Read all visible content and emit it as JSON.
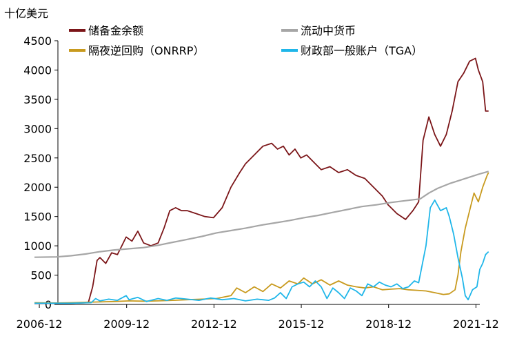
{
  "chart_data": {
    "type": "line",
    "unit_label": "十亿美元",
    "ylim": [
      0,
      4500
    ],
    "y_ticks": [
      0,
      500,
      1000,
      1500,
      2000,
      2500,
      3000,
      3500,
      4000,
      4500
    ],
    "xlim": [
      2006.75,
      2022.5
    ],
    "x_ticks": [
      {
        "x": 2006.917,
        "label": "2006-12"
      },
      {
        "x": 2009.917,
        "label": "2009-12"
      },
      {
        "x": 2012.917,
        "label": "2012-12"
      },
      {
        "x": 2015.917,
        "label": "2015-12"
      },
      {
        "x": 2018.917,
        "label": "2018-12"
      },
      {
        "x": 2021.917,
        "label": "2021-12"
      }
    ],
    "grid": false,
    "legend_position": "top-left",
    "series": [
      {
        "name": "储备金余额",
        "color": "#7B1518",
        "points": [
          [
            2006.75,
            15
          ],
          [
            2008.0,
            20
          ],
          [
            2008.6,
            30
          ],
          [
            2008.75,
            300
          ],
          [
            2008.9,
            750
          ],
          [
            2009.0,
            800
          ],
          [
            2009.2,
            700
          ],
          [
            2009.4,
            880
          ],
          [
            2009.6,
            850
          ],
          [
            2009.75,
            1000
          ],
          [
            2009.9,
            1150
          ],
          [
            2010.1,
            1080
          ],
          [
            2010.3,
            1250
          ],
          [
            2010.5,
            1050
          ],
          [
            2010.75,
            1000
          ],
          [
            2011.0,
            1050
          ],
          [
            2011.2,
            1300
          ],
          [
            2011.4,
            1600
          ],
          [
            2011.6,
            1650
          ],
          [
            2011.8,
            1600
          ],
          [
            2012.0,
            1600
          ],
          [
            2012.3,
            1550
          ],
          [
            2012.6,
            1500
          ],
          [
            2012.9,
            1480
          ],
          [
            2013.2,
            1650
          ],
          [
            2013.5,
            2000
          ],
          [
            2013.8,
            2250
          ],
          [
            2014.0,
            2400
          ],
          [
            2014.3,
            2550
          ],
          [
            2014.6,
            2700
          ],
          [
            2014.9,
            2750
          ],
          [
            2015.1,
            2650
          ],
          [
            2015.3,
            2700
          ],
          [
            2015.5,
            2550
          ],
          [
            2015.7,
            2650
          ],
          [
            2015.9,
            2500
          ],
          [
            2016.1,
            2550
          ],
          [
            2016.4,
            2400
          ],
          [
            2016.6,
            2300
          ],
          [
            2016.9,
            2350
          ],
          [
            2017.2,
            2250
          ],
          [
            2017.5,
            2300
          ],
          [
            2017.8,
            2200
          ],
          [
            2018.1,
            2150
          ],
          [
            2018.4,
            2000
          ],
          [
            2018.7,
            1850
          ],
          [
            2018.9,
            1700
          ],
          [
            2019.2,
            1550
          ],
          [
            2019.5,
            1450
          ],
          [
            2019.75,
            1600
          ],
          [
            2019.95,
            1750
          ],
          [
            2020.1,
            2800
          ],
          [
            2020.3,
            3200
          ],
          [
            2020.5,
            2900
          ],
          [
            2020.7,
            2700
          ],
          [
            2020.9,
            2900
          ],
          [
            2021.1,
            3300
          ],
          [
            2021.3,
            3800
          ],
          [
            2021.5,
            3950
          ],
          [
            2021.7,
            4150
          ],
          [
            2021.9,
            4200
          ],
          [
            2022.0,
            4000
          ],
          [
            2022.15,
            3800
          ],
          [
            2022.25,
            3300
          ],
          [
            2022.35,
            3300
          ]
        ]
      },
      {
        "name": "流动中货币",
        "color": "#A6A6A6",
        "points": [
          [
            2006.75,
            805
          ],
          [
            2007.5,
            810
          ],
          [
            2008.0,
            830
          ],
          [
            2008.5,
            860
          ],
          [
            2009.0,
            900
          ],
          [
            2009.5,
            930
          ],
          [
            2010.0,
            950
          ],
          [
            2010.5,
            970
          ],
          [
            2011.0,
            1010
          ],
          [
            2011.5,
            1060
          ],
          [
            2012.0,
            1110
          ],
          [
            2012.5,
            1160
          ],
          [
            2013.0,
            1220
          ],
          [
            2013.5,
            1260
          ],
          [
            2014.0,
            1300
          ],
          [
            2014.5,
            1350
          ],
          [
            2015.0,
            1390
          ],
          [
            2015.5,
            1430
          ],
          [
            2016.0,
            1480
          ],
          [
            2016.5,
            1520
          ],
          [
            2017.0,
            1570
          ],
          [
            2017.5,
            1620
          ],
          [
            2018.0,
            1670
          ],
          [
            2018.5,
            1700
          ],
          [
            2019.0,
            1740
          ],
          [
            2019.5,
            1770
          ],
          [
            2020.0,
            1800
          ],
          [
            2020.3,
            1900
          ],
          [
            2020.6,
            1980
          ],
          [
            2021.0,
            2060
          ],
          [
            2021.5,
            2140
          ],
          [
            2022.0,
            2220
          ],
          [
            2022.35,
            2270
          ]
        ]
      },
      {
        "name": "隔夜逆回购（ONRRP）",
        "color": "#C89A1E",
        "points": [
          [
            2006.75,
            30
          ],
          [
            2007.5,
            25
          ],
          [
            2008.0,
            30
          ],
          [
            2008.75,
            40
          ],
          [
            2009.5,
            50
          ],
          [
            2010.0,
            60
          ],
          [
            2010.5,
            55
          ],
          [
            2011.0,
            60
          ],
          [
            2011.5,
            70
          ],
          [
            2012.0,
            80
          ],
          [
            2012.5,
            90
          ],
          [
            2013.0,
            100
          ],
          [
            2013.5,
            150
          ],
          [
            2013.7,
            280
          ],
          [
            2014.0,
            200
          ],
          [
            2014.3,
            300
          ],
          [
            2014.6,
            220
          ],
          [
            2014.9,
            350
          ],
          [
            2015.2,
            280
          ],
          [
            2015.5,
            400
          ],
          [
            2015.8,
            350
          ],
          [
            2016.0,
            450
          ],
          [
            2016.3,
            350
          ],
          [
            2016.6,
            420
          ],
          [
            2016.9,
            330
          ],
          [
            2017.2,
            400
          ],
          [
            2017.5,
            330
          ],
          [
            2017.8,
            300
          ],
          [
            2018.1,
            280
          ],
          [
            2018.4,
            300
          ],
          [
            2018.7,
            250
          ],
          [
            2019.0,
            260
          ],
          [
            2019.3,
            270
          ],
          [
            2019.6,
            250
          ],
          [
            2019.9,
            240
          ],
          [
            2020.2,
            230
          ],
          [
            2020.5,
            200
          ],
          [
            2020.8,
            170
          ],
          [
            2021.0,
            180
          ],
          [
            2021.2,
            250
          ],
          [
            2021.3,
            500
          ],
          [
            2021.4,
            900
          ],
          [
            2021.55,
            1300
          ],
          [
            2021.7,
            1600
          ],
          [
            2021.85,
            1900
          ],
          [
            2022.0,
            1750
          ],
          [
            2022.15,
            2000
          ],
          [
            2022.3,
            2200
          ],
          [
            2022.35,
            2250
          ]
        ]
      },
      {
        "name": "财政部一般账户（TGA）",
        "color": "#1FB6E9",
        "points": [
          [
            2006.75,
            20
          ],
          [
            2008.0,
            20
          ],
          [
            2008.7,
            30
          ],
          [
            2008.85,
            100
          ],
          [
            2009.0,
            60
          ],
          [
            2009.3,
            90
          ],
          [
            2009.6,
            70
          ],
          [
            2009.9,
            150
          ],
          [
            2010.0,
            80
          ],
          [
            2010.3,
            120
          ],
          [
            2010.6,
            50
          ],
          [
            2011.0,
            100
          ],
          [
            2011.3,
            70
          ],
          [
            2011.6,
            110
          ],
          [
            2012.0,
            90
          ],
          [
            2012.4,
            70
          ],
          [
            2012.8,
            110
          ],
          [
            2013.2,
            80
          ],
          [
            2013.6,
            100
          ],
          [
            2014.0,
            60
          ],
          [
            2014.4,
            90
          ],
          [
            2014.8,
            70
          ],
          [
            2015.0,
            110
          ],
          [
            2015.2,
            200
          ],
          [
            2015.4,
            100
          ],
          [
            2015.6,
            300
          ],
          [
            2015.8,
            350
          ],
          [
            2016.0,
            380
          ],
          [
            2016.2,
            300
          ],
          [
            2016.4,
            400
          ],
          [
            2016.6,
            300
          ],
          [
            2016.8,
            100
          ],
          [
            2017.0,
            280
          ],
          [
            2017.2,
            200
          ],
          [
            2017.4,
            100
          ],
          [
            2017.6,
            280
          ],
          [
            2017.8,
            230
          ],
          [
            2018.0,
            150
          ],
          [
            2018.2,
            350
          ],
          [
            2018.4,
            300
          ],
          [
            2018.6,
            380
          ],
          [
            2018.8,
            330
          ],
          [
            2019.0,
            300
          ],
          [
            2019.2,
            350
          ],
          [
            2019.4,
            270
          ],
          [
            2019.6,
            300
          ],
          [
            2019.8,
            400
          ],
          [
            2019.95,
            370
          ],
          [
            2020.2,
            1000
          ],
          [
            2020.35,
            1650
          ],
          [
            2020.5,
            1780
          ],
          [
            2020.7,
            1600
          ],
          [
            2020.9,
            1650
          ],
          [
            2021.0,
            1500
          ],
          [
            2021.15,
            1200
          ],
          [
            2021.3,
            800
          ],
          [
            2021.45,
            450
          ],
          [
            2021.55,
            150
          ],
          [
            2021.65,
            80
          ],
          [
            2021.8,
            250
          ],
          [
            2021.95,
            300
          ],
          [
            2022.05,
            600
          ],
          [
            2022.15,
            700
          ],
          [
            2022.25,
            850
          ],
          [
            2022.35,
            900
          ]
        ]
      }
    ]
  }
}
